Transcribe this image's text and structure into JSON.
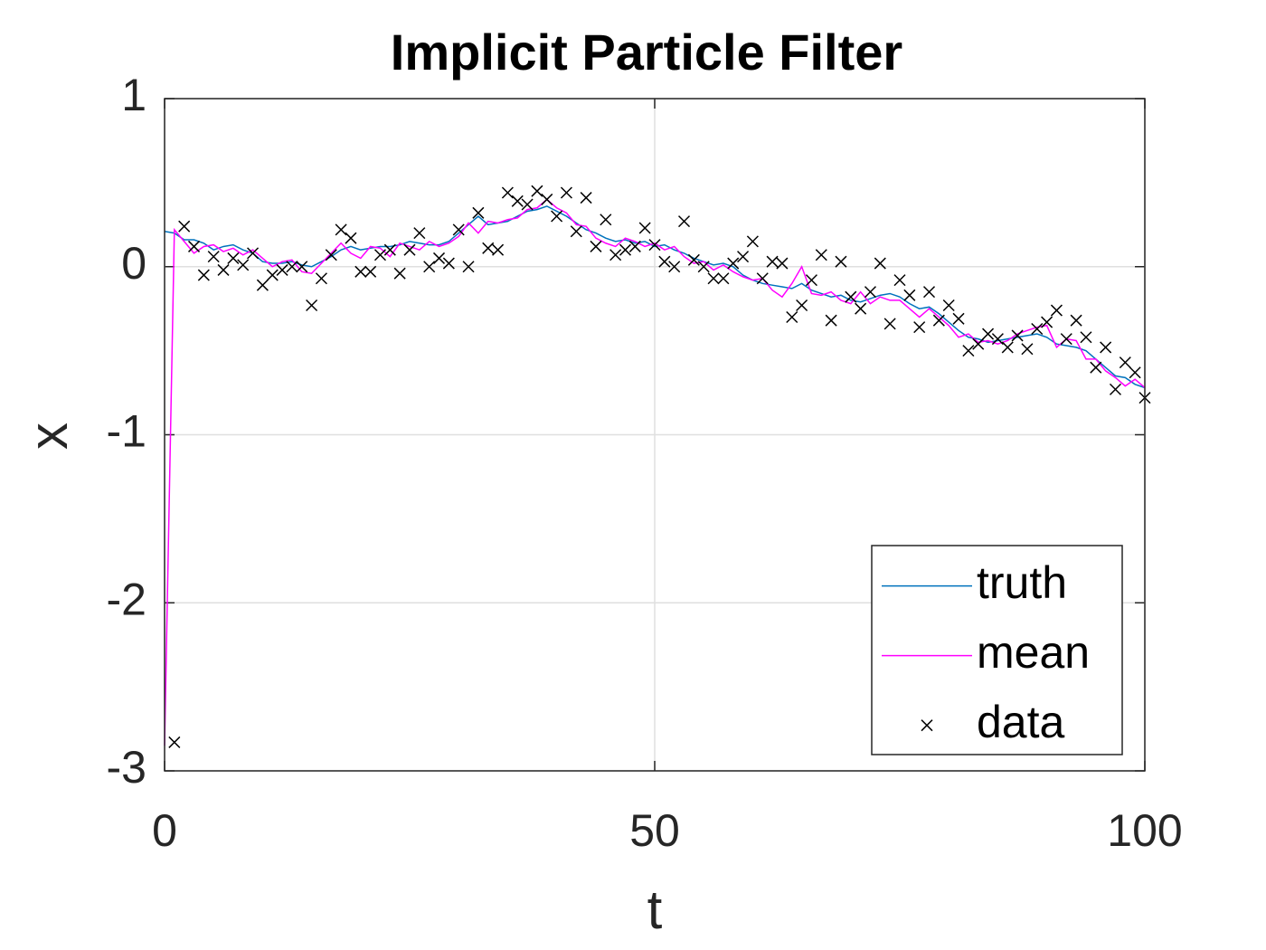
{
  "chart_data": {
    "type": "line",
    "title": "Implicit Particle Filter",
    "x_label": "t",
    "y_label": "x",
    "x": [
      0,
      1,
      2,
      3,
      4,
      5,
      6,
      7,
      8,
      9,
      10,
      11,
      12,
      13,
      14,
      15,
      16,
      17,
      18,
      19,
      20,
      21,
      22,
      23,
      24,
      25,
      26,
      27,
      28,
      29,
      30,
      31,
      32,
      33,
      34,
      35,
      36,
      37,
      38,
      39,
      40,
      41,
      42,
      43,
      44,
      45,
      46,
      47,
      48,
      49,
      50,
      51,
      52,
      53,
      54,
      55,
      56,
      57,
      58,
      59,
      60,
      61,
      62,
      63,
      64,
      65,
      66,
      67,
      68,
      69,
      70,
      71,
      72,
      73,
      74,
      75,
      76,
      77,
      78,
      79,
      80,
      81,
      82,
      83,
      84,
      85,
      86,
      87,
      88,
      89,
      90,
      91,
      92,
      93,
      94,
      95,
      96,
      97,
      98,
      99,
      100
    ],
    "series": [
      {
        "name": "truth",
        "color": "#0072bd",
        "mark": "line",
        "values": [
          0.21,
          0.2,
          0.16,
          0.16,
          0.14,
          0.1,
          0.12,
          0.13,
          0.1,
          0.08,
          0.03,
          0.02,
          0.02,
          0.03,
          0.01,
          0.0,
          0.03,
          0.06,
          0.1,
          0.12,
          0.1,
          0.11,
          0.12,
          0.12,
          0.13,
          0.15,
          0.14,
          0.13,
          0.13,
          0.15,
          0.2,
          0.25,
          0.3,
          0.25,
          0.26,
          0.27,
          0.3,
          0.33,
          0.34,
          0.36,
          0.33,
          0.3,
          0.26,
          0.22,
          0.2,
          0.17,
          0.15,
          0.16,
          0.14,
          0.15,
          0.12,
          0.13,
          0.1,
          0.08,
          0.05,
          0.03,
          0.01,
          0.02,
          0.0,
          -0.05,
          -0.08,
          -0.1,
          -0.11,
          -0.12,
          -0.13,
          -0.1,
          -0.14,
          -0.16,
          -0.18,
          -0.17,
          -0.2,
          -0.21,
          -0.19,
          -0.17,
          -0.16,
          -0.18,
          -0.22,
          -0.25,
          -0.24,
          -0.28,
          -0.33,
          -0.38,
          -0.42,
          -0.43,
          -0.45,
          -0.44,
          -0.43,
          -0.42,
          -0.41,
          -0.4,
          -0.42,
          -0.46,
          -0.47,
          -0.48,
          -0.5,
          -0.55,
          -0.6,
          -0.65,
          -0.66,
          -0.7,
          -0.72
        ]
      },
      {
        "name": "mean",
        "color": "#ff00ff",
        "mark": "line",
        "values": [
          -2.85,
          0.22,
          0.15,
          0.08,
          0.12,
          0.13,
          0.09,
          0.11,
          0.07,
          0.1,
          0.05,
          0.0,
          0.03,
          0.04,
          -0.03,
          -0.04,
          0.02,
          0.08,
          0.14,
          0.08,
          0.05,
          0.12,
          0.11,
          0.06,
          0.14,
          0.12,
          0.1,
          0.15,
          0.12,
          0.14,
          0.18,
          0.26,
          0.2,
          0.27,
          0.26,
          0.28,
          0.29,
          0.34,
          0.35,
          0.4,
          0.35,
          0.32,
          0.25,
          0.24,
          0.17,
          0.14,
          0.12,
          0.17,
          0.15,
          0.12,
          0.14,
          0.1,
          0.12,
          0.06,
          0.02,
          0.03,
          -0.02,
          0.01,
          -0.03,
          -0.06,
          -0.08,
          -0.07,
          -0.14,
          -0.18,
          -0.1,
          0.0,
          -0.16,
          -0.17,
          -0.15,
          -0.2,
          -0.22,
          -0.15,
          -0.22,
          -0.18,
          -0.2,
          -0.2,
          -0.25,
          -0.3,
          -0.25,
          -0.3,
          -0.35,
          -0.42,
          -0.4,
          -0.45,
          -0.44,
          -0.46,
          -0.44,
          -0.4,
          -0.38,
          -0.36,
          -0.35,
          -0.48,
          -0.43,
          -0.44,
          -0.55,
          -0.55,
          -0.62,
          -0.66,
          -0.71,
          -0.67,
          -0.72
        ]
      },
      {
        "name": "data",
        "color": "#000000",
        "mark": "x",
        "values": [
          null,
          -2.83,
          0.24,
          0.12,
          -0.05,
          0.06,
          -0.02,
          0.05,
          0.01,
          0.08,
          -0.11,
          -0.05,
          -0.02,
          0.0,
          0.0,
          -0.23,
          -0.07,
          0.07,
          0.22,
          0.17,
          -0.03,
          -0.03,
          0.07,
          0.1,
          -0.04,
          0.1,
          0.2,
          0.0,
          0.05,
          0.02,
          0.22,
          0.0,
          0.32,
          0.11,
          0.1,
          0.44,
          0.39,
          0.37,
          0.45,
          0.4,
          0.3,
          0.44,
          0.21,
          0.41,
          0.12,
          0.28,
          0.07,
          0.1,
          0.12,
          0.23,
          0.13,
          0.03,
          0.0,
          0.27,
          0.04,
          0.0,
          -0.07,
          -0.07,
          0.02,
          0.06,
          0.15,
          -0.07,
          0.03,
          0.02,
          -0.3,
          -0.23,
          -0.08,
          0.07,
          -0.32,
          0.03,
          -0.18,
          -0.25,
          -0.15,
          0.02,
          -0.34,
          -0.08,
          -0.17,
          -0.36,
          -0.15,
          -0.32,
          -0.23,
          -0.31,
          -0.5,
          -0.46,
          -0.4,
          -0.43,
          -0.48,
          -0.41,
          -0.49,
          -0.37,
          -0.33,
          -0.26,
          -0.43,
          -0.32,
          -0.42,
          -0.6,
          -0.48,
          -0.73,
          -0.57,
          -0.63,
          -0.78
        ]
      }
    ],
    "xlim": [
      0,
      100
    ],
    "ylim": [
      -3,
      1
    ],
    "xticks": [
      0,
      50,
      100
    ],
    "yticks": [
      -3,
      -2,
      -1,
      0,
      1
    ],
    "grid": true,
    "legend": "southeast"
  }
}
